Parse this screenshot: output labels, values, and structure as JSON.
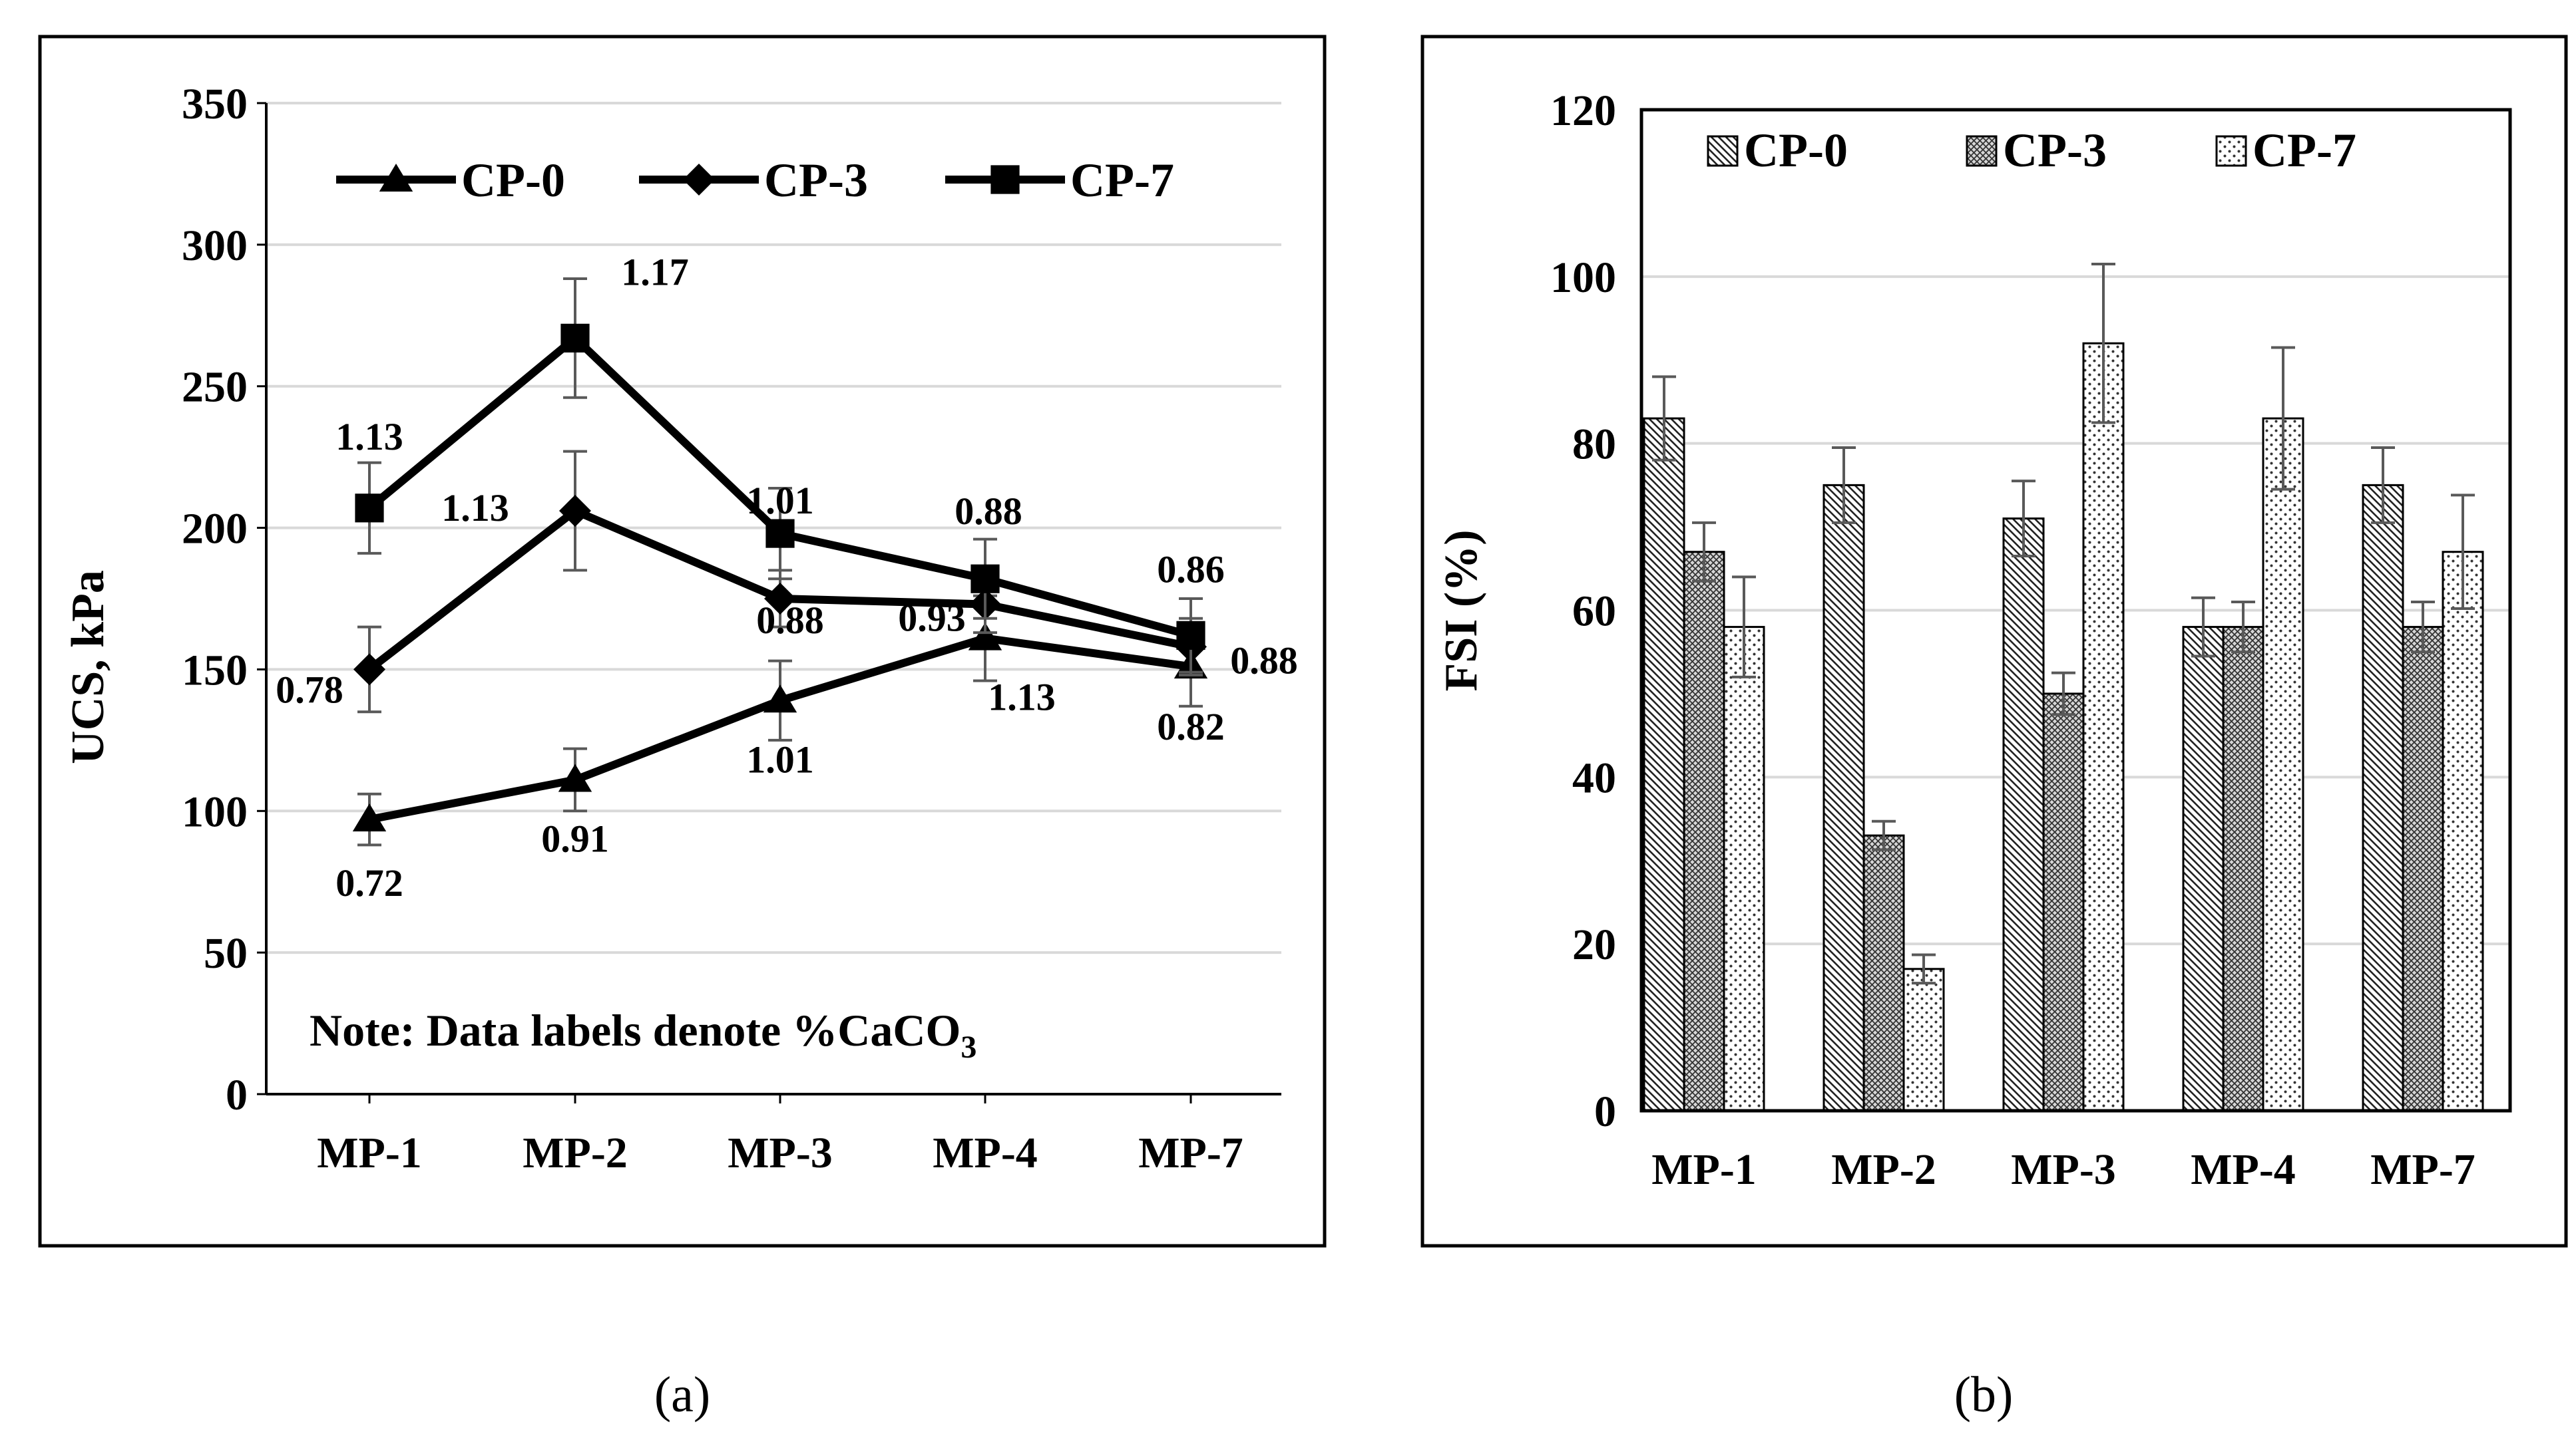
{
  "chart_data": [
    {
      "type": "line",
      "caption": "(a)",
      "categories": [
        "MP-1",
        "MP-2",
        "MP-3",
        "MP-4",
        "MP-7"
      ],
      "ylabel": "UCS, kPa",
      "ylim": [
        0,
        350
      ],
      "yticks": [
        0,
        50,
        100,
        150,
        200,
        250,
        300,
        350
      ],
      "grid": true,
      "legend": "top",
      "note_prefix": "Note: Data labels denote %CaCO",
      "note_subscript": "3",
      "series": [
        {
          "name": "CP-0",
          "marker": "triangle",
          "values": [
            97,
            111,
            139,
            161,
            151
          ],
          "errors": [
            9,
            11,
            14,
            15,
            14
          ],
          "labels": [
            "0.72",
            "0.91",
            "1.01",
            "1.13",
            "0.82"
          ]
        },
        {
          "name": "CP-3",
          "marker": "diamond",
          "values": [
            150,
            206,
            175,
            173,
            158
          ],
          "errors": [
            15,
            21,
            10,
            10,
            10
          ],
          "labels": [
            "0.78",
            "1.13",
            "0.88",
            "0.93",
            "0.88"
          ]
        },
        {
          "name": "CP-7",
          "marker": "square",
          "values": [
            207,
            267,
            198,
            182,
            162
          ],
          "errors": [
            16,
            21,
            16,
            14,
            13
          ],
          "labels": [
            "1.13",
            "1.17",
            "1.01",
            "0.88",
            "0.86"
          ]
        }
      ]
    },
    {
      "type": "bar",
      "caption": "(b)",
      "categories": [
        "MP-1",
        "MP-2",
        "MP-3",
        "MP-4",
        "MP-7"
      ],
      "ylabel": "FSI (%)",
      "ylim": [
        0,
        120
      ],
      "yticks": [
        0,
        20,
        40,
        60,
        80,
        100,
        120
      ],
      "grid": true,
      "legend": "top",
      "series": [
        {
          "name": "CP-0",
          "pattern": "diagonal",
          "values": [
            83,
            75,
            71,
            58,
            75
          ],
          "errors": [
            5,
            4.5,
            4.5,
            3.5,
            4.5
          ]
        },
        {
          "name": "CP-3",
          "pattern": "crosshatch",
          "values": [
            67,
            33,
            50,
            58,
            58
          ],
          "errors": [
            3.5,
            1.7,
            2.5,
            3,
            3
          ]
        },
        {
          "name": "CP-7",
          "pattern": "dots",
          "values": [
            58,
            17,
            92,
            83,
            67
          ],
          "errors": [
            6,
            1.7,
            9.5,
            8.5,
            6.8
          ]
        }
      ]
    }
  ]
}
